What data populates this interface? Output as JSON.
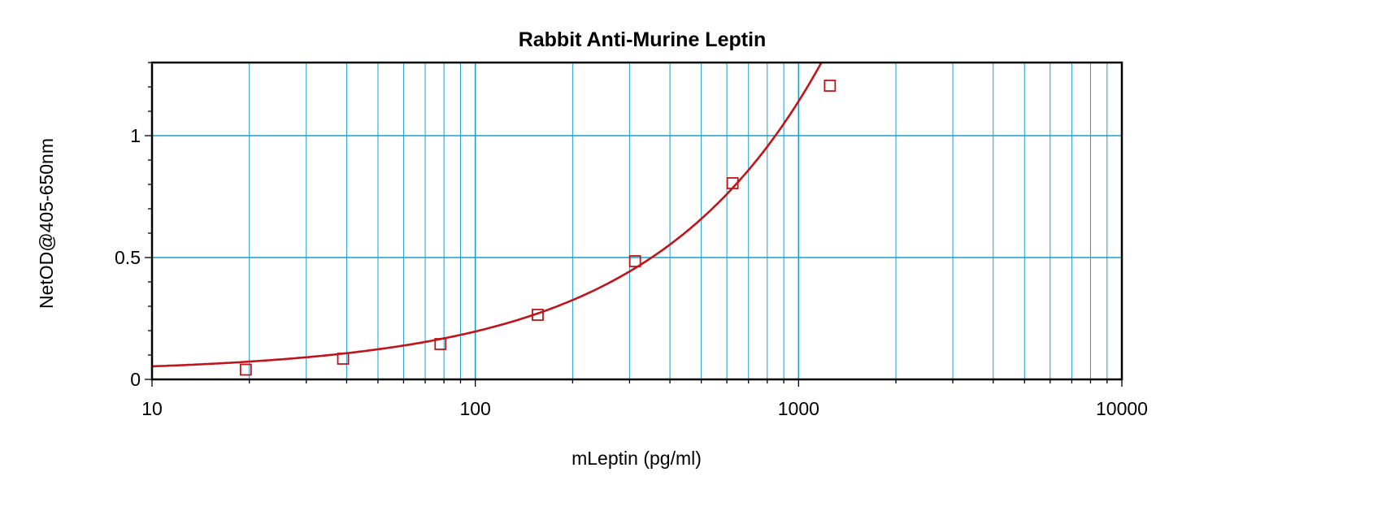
{
  "chart_data": {
    "type": "scatter",
    "title": "Rabbit Anti-Murine Leptin",
    "xlabel": "mLeptin (pg/ml)",
    "ylabel": "NetOD@405-650nm",
    "xscale": "log",
    "xlim": [
      10,
      10000
    ],
    "ylim": [
      0,
      1.3
    ],
    "grid": true,
    "x_tick_labels": [
      "10",
      "100",
      "1000",
      "10000"
    ],
    "y_tick_labels": [
      "0",
      "0.5",
      "1"
    ],
    "series": [
      {
        "points": [
          {
            "x": 19.5,
            "y": 0.04
          },
          {
            "x": 39,
            "y": 0.085
          },
          {
            "x": 78,
            "y": 0.145
          },
          {
            "x": 156,
            "y": 0.265
          },
          {
            "x": 312,
            "y": 0.485
          },
          {
            "x": 625,
            "y": 0.805
          },
          {
            "x": 1250,
            "y": 1.205
          }
        ],
        "marker": "square-open",
        "fit_curve": true
      }
    ],
    "colors": {
      "series": "#c0141a",
      "grid": "#1aa0c8",
      "frame": "#000000"
    }
  }
}
